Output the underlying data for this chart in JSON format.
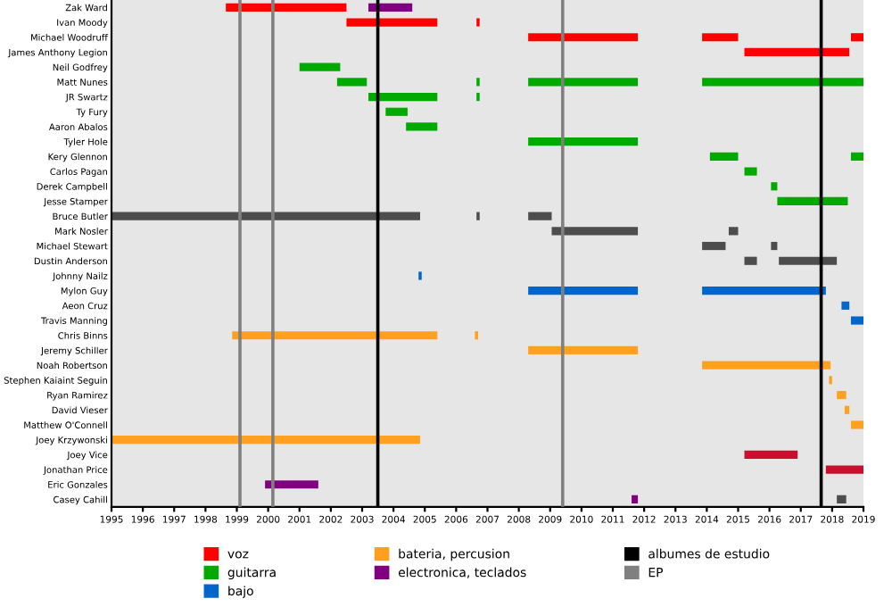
{
  "chart_data": {
    "type": "bar",
    "orientation": "horizontal",
    "categories": [
      "Zak Ward",
      "Ivan Moody",
      "Michael Woodruff",
      "James Anthony Legion",
      "Neil Godfrey",
      "Matt Nunes",
      "JR Swartz",
      "Ty Fury",
      "Aaron Abalos",
      "Tyler Hole",
      "Kery Glennon",
      "Carlos Pagan",
      "Derek Campbell",
      "Jesse Stamper",
      "Bruce Butler",
      "Mark Nosler",
      "Michael Stewart",
      "Dustin Anderson",
      "Johnny Nailz",
      "Mylon Guy",
      "Aeon Cruz",
      "Travis Manning",
      "Chris Binns",
      "Jeremy Schiller",
      "Noah Robertson",
      "Stephen Kaiaint Seguin",
      "Ryan Ramirez",
      "David Vieser",
      "Matthew O'Connell",
      "Joey Krzywonski",
      "Joey Vice",
      "Jonathan Price",
      "Eric Gonzales",
      "Casey Cahill"
    ],
    "series": [
      {
        "name": "voz",
        "color": "#ff0000",
        "base": [
          1998.65,
          2002.5,
          2008.3,
          2015.2,
          null,
          null,
          null,
          null,
          null,
          null,
          null,
          null,
          null,
          null,
          null,
          null,
          null,
          null,
          null,
          null,
          null,
          null,
          null,
          null,
          null,
          null,
          null,
          null,
          null,
          null,
          null,
          null,
          null,
          null
        ],
        "values": [
          3.85,
          2.9,
          3.5,
          3.35,
          null,
          null,
          null,
          null,
          null,
          null,
          null,
          null,
          null,
          null,
          null,
          null,
          null,
          null,
          null,
          null,
          null,
          null,
          null,
          null,
          null,
          null,
          null,
          null,
          null,
          null,
          null,
          null,
          null,
          null
        ]
      },
      {
        "color": "#ff0000",
        "base": [
          null,
          2006.65,
          2013.85,
          null,
          null,
          null,
          null,
          null,
          null,
          null,
          null,
          null,
          null,
          null,
          null,
          null,
          null,
          null,
          null,
          null,
          null,
          null,
          null,
          null,
          null,
          null,
          null,
          null,
          null,
          null,
          null,
          null,
          null,
          null
        ],
        "values": [
          null,
          0.1,
          1.15,
          null,
          null,
          null,
          null,
          null,
          null,
          null,
          null,
          null,
          null,
          null,
          null,
          null,
          null,
          null,
          null,
          null,
          null,
          null,
          null,
          null,
          null,
          null,
          null,
          null,
          null,
          null,
          null,
          null,
          null,
          null
        ]
      },
      {
        "color": "#ff0000",
        "base": [
          null,
          null,
          2018.6,
          null,
          null,
          null,
          null,
          null,
          null,
          null,
          null,
          null,
          null,
          null,
          null,
          null,
          null,
          null,
          null,
          null,
          null,
          null,
          null,
          null,
          null,
          null,
          null,
          null,
          null,
          null,
          null,
          null,
          null,
          null
        ],
        "values": [
          null,
          null,
          0.4,
          null,
          null,
          null,
          null,
          null,
          null,
          null,
          null,
          null,
          null,
          null,
          null,
          null,
          null,
          null,
          null,
          null,
          null,
          null,
          null,
          null,
          null,
          null,
          null,
          null,
          null,
          null,
          null,
          null,
          null,
          null
        ]
      },
      {
        "color": "#4d4d4d",
        "base": [
          null,
          null,
          null,
          null,
          null,
          null,
          null,
          null,
          null,
          null,
          null,
          null,
          null,
          null,
          1995,
          2009.05,
          2013.85,
          2015.2,
          null,
          null,
          null,
          null,
          null,
          null,
          null,
          null,
          null,
          null,
          null,
          null,
          null,
          null,
          null,
          2018.15
        ],
        "values": [
          null,
          null,
          null,
          null,
          null,
          null,
          null,
          null,
          null,
          null,
          null,
          null,
          null,
          null,
          9.85,
          2.75,
          0.75,
          0.4,
          null,
          null,
          null,
          null,
          null,
          null,
          null,
          null,
          null,
          null,
          null,
          null,
          null,
          null,
          null,
          0.3
        ]
      },
      {
        "color": "#4d4d4d",
        "base": [
          null,
          null,
          null,
          null,
          null,
          null,
          null,
          null,
          null,
          null,
          null,
          null,
          null,
          null,
          2006.65,
          2014.7,
          2016.05,
          2016.3,
          null,
          null,
          null,
          null,
          null,
          null,
          null,
          null,
          null,
          null,
          null,
          null,
          null,
          null,
          null,
          null
        ],
        "values": [
          null,
          null,
          null,
          null,
          null,
          null,
          null,
          null,
          null,
          null,
          null,
          null,
          null,
          null,
          0.1,
          0.3,
          0.2,
          1.85,
          null,
          null,
          null,
          null,
          null,
          null,
          null,
          null,
          null,
          null,
          null,
          null,
          null,
          null,
          null,
          null
        ]
      },
      {
        "color": "#4d4d4d",
        "base": [
          null,
          null,
          null,
          null,
          null,
          null,
          null,
          null,
          null,
          null,
          null,
          null,
          null,
          null,
          2008.3,
          null,
          null,
          null,
          null,
          null,
          null,
          null,
          null,
          null,
          null,
          null,
          null,
          null,
          null,
          null,
          null,
          null,
          null,
          null
        ],
        "values": [
          null,
          null,
          null,
          null,
          null,
          null,
          null,
          null,
          null,
          null,
          null,
          null,
          null,
          null,
          0.75,
          null,
          null,
          null,
          null,
          null,
          null,
          null,
          null,
          null,
          null,
          null,
          null,
          null,
          null,
          null,
          null,
          null,
          null,
          null
        ]
      },
      {
        "name": "guitarra",
        "color": "#00aa00",
        "base": [
          null,
          null,
          null,
          null,
          2001.0,
          2002.2,
          2003.2,
          2003.75,
          2004.4,
          2008.3,
          2014.1,
          2015.2,
          2016.05,
          2016.25,
          null,
          null,
          null,
          null,
          null,
          null,
          null,
          null,
          null,
          null,
          null,
          null,
          null,
          null,
          null,
          null,
          null,
          null,
          null,
          null
        ],
        "values": [
          null,
          null,
          null,
          null,
          1.3,
          0.95,
          2.2,
          0.7,
          1.0,
          3.5,
          0.9,
          0.4,
          0.2,
          2.25,
          null,
          null,
          null,
          null,
          null,
          null,
          null,
          null,
          null,
          null,
          null,
          null,
          null,
          null,
          null,
          null,
          null,
          null,
          null,
          null
        ]
      },
      {
        "color": "#00aa00",
        "base": [
          null,
          null,
          null,
          null,
          null,
          null,
          2006.65,
          null,
          null,
          null,
          2018.6,
          null,
          null,
          null,
          null,
          null,
          null,
          null,
          null,
          null,
          null,
          null,
          null,
          null,
          null,
          null,
          null,
          null,
          null,
          null,
          null,
          null,
          null,
          null
        ],
        "values": [
          null,
          null,
          null,
          null,
          null,
          null,
          0.1,
          null,
          null,
          null,
          0.4,
          null,
          null,
          null,
          null,
          null,
          null,
          null,
          null,
          null,
          null,
          null,
          null,
          null,
          null,
          null,
          null,
          null,
          null,
          null,
          null,
          null,
          null,
          null
        ]
      },
      {
        "color": "#00aa00",
        "base": [
          null,
          null,
          null,
          null,
          null,
          2006.65,
          null,
          null,
          null,
          null,
          null,
          null,
          null,
          null,
          null,
          null,
          null,
          null,
          null,
          null,
          null,
          null,
          null,
          null,
          null,
          null,
          null,
          null,
          null,
          null,
          null,
          null,
          null,
          null
        ],
        "values": [
          null,
          null,
          null,
          null,
          null,
          0.1,
          null,
          null,
          null,
          null,
          null,
          null,
          null,
          null,
          null,
          null,
          null,
          null,
          null,
          null,
          null,
          null,
          null,
          null,
          null,
          null,
          null,
          null,
          null,
          null,
          null,
          null,
          null,
          null
        ]
      },
      {
        "color": "#00aa00",
        "base": [
          null,
          null,
          null,
          null,
          null,
          2008.3,
          null,
          null,
          null,
          null,
          null,
          null,
          null,
          null,
          null,
          null,
          null,
          null,
          null,
          null,
          null,
          null,
          null,
          null,
          null,
          null,
          null,
          null,
          null,
          null,
          null,
          null,
          null,
          null
        ],
        "values": [
          null,
          null,
          null,
          null,
          null,
          3.5,
          null,
          null,
          null,
          null,
          null,
          null,
          null,
          null,
          null,
          null,
          null,
          null,
          null,
          null,
          null,
          null,
          null,
          null,
          null,
          null,
          null,
          null,
          null,
          null,
          null,
          null,
          null,
          null
        ]
      },
      {
        "color": "#00aa00",
        "base": [
          null,
          null,
          null,
          null,
          null,
          2013.85,
          null,
          null,
          null,
          null,
          null,
          null,
          null,
          null,
          null,
          null,
          null,
          null,
          null,
          null,
          null,
          null,
          null,
          null,
          null,
          null,
          null,
          null,
          null,
          null,
          null,
          null,
          null,
          null
        ],
        "values": [
          null,
          null,
          null,
          null,
          null,
          5.15,
          null,
          null,
          null,
          null,
          null,
          null,
          null,
          null,
          null,
          null,
          null,
          null,
          null,
          null,
          null,
          null,
          null,
          null,
          null,
          null,
          null,
          null,
          null,
          null,
          null,
          null,
          null,
          null
        ]
      },
      {
        "name": "bajo",
        "color": "#0066cc",
        "base": [
          null,
          null,
          null,
          null,
          null,
          null,
          null,
          null,
          null,
          null,
          null,
          null,
          null,
          null,
          null,
          null,
          null,
          null,
          2004.8,
          2008.3,
          2018.3,
          2018.6,
          null,
          null,
          null,
          null,
          null,
          null,
          null,
          null,
          null,
          null,
          null,
          null
        ],
        "values": [
          null,
          null,
          null,
          null,
          null,
          null,
          null,
          null,
          null,
          null,
          null,
          null,
          null,
          null,
          null,
          null,
          null,
          null,
          0.1,
          3.5,
          0.25,
          0.4,
          null,
          null,
          null,
          null,
          null,
          null,
          null,
          null,
          null,
          null,
          null,
          null
        ]
      },
      {
        "color": "#0066cc",
        "base": [
          null,
          null,
          null,
          null,
          null,
          null,
          null,
          null,
          null,
          null,
          null,
          null,
          null,
          null,
          null,
          null,
          null,
          null,
          null,
          2013.85,
          null,
          null,
          null,
          null,
          null,
          null,
          null,
          null,
          null,
          null,
          null,
          null,
          null,
          null
        ],
        "values": [
          null,
          null,
          null,
          null,
          null,
          null,
          null,
          null,
          null,
          null,
          null,
          null,
          null,
          null,
          null,
          null,
          null,
          null,
          null,
          3.95,
          null,
          null,
          null,
          null,
          null,
          null,
          null,
          null,
          null,
          null,
          null,
          null,
          null,
          null
        ]
      },
      {
        "name": "bateria, percusion",
        "color": "#ffa020",
        "base": [
          null,
          null,
          null,
          null,
          null,
          null,
          null,
          null,
          null,
          null,
          null,
          null,
          null,
          null,
          null,
          null,
          null,
          null,
          null,
          null,
          null,
          null,
          1998.85,
          2008.3,
          2013.85,
          2017.9,
          2018.15,
          2018.4,
          2018.6,
          1995,
          null,
          null,
          null,
          null
        ],
        "values": [
          null,
          null,
          null,
          null,
          null,
          null,
          null,
          null,
          null,
          null,
          null,
          null,
          null,
          null,
          null,
          null,
          null,
          null,
          null,
          null,
          null,
          null,
          6.55,
          3.5,
          4.1,
          0.1,
          0.3,
          0.15,
          0.4,
          9.85,
          null,
          null,
          null,
          null
        ]
      },
      {
        "color": "#ffa020",
        "base": [
          null,
          null,
          null,
          null,
          null,
          null,
          null,
          null,
          null,
          null,
          null,
          null,
          null,
          null,
          null,
          null,
          null,
          null,
          null,
          null,
          null,
          null,
          2006.6,
          null,
          null,
          null,
          null,
          null,
          null,
          null,
          null,
          null,
          null,
          null
        ],
        "values": [
          null,
          null,
          null,
          null,
          null,
          null,
          null,
          null,
          null,
          null,
          null,
          null,
          null,
          null,
          null,
          null,
          null,
          null,
          null,
          null,
          null,
          null,
          0.1,
          null,
          null,
          null,
          null,
          null,
          null,
          null,
          null,
          null,
          null,
          null
        ]
      },
      {
        "name": "electronica, teclados",
        "color": "#800080",
        "base": [
          2003.2,
          null,
          null,
          null,
          null,
          null,
          null,
          null,
          null,
          null,
          null,
          null,
          null,
          null,
          null,
          null,
          null,
          null,
          null,
          null,
          null,
          null,
          null,
          null,
          null,
          null,
          null,
          null,
          null,
          null,
          null,
          null,
          1999.9,
          2011.6
        ],
        "values": [
          1.4,
          null,
          null,
          null,
          null,
          null,
          null,
          null,
          null,
          null,
          null,
          null,
          null,
          null,
          null,
          null,
          null,
          null,
          null,
          null,
          null,
          null,
          null,
          null,
          null,
          null,
          null,
          null,
          null,
          null,
          null,
          null,
          1.7,
          0.2
        ]
      },
      {
        "color": "#c8102e",
        "base": [
          null,
          null,
          null,
          null,
          null,
          null,
          null,
          null,
          null,
          null,
          null,
          null,
          null,
          null,
          null,
          null,
          null,
          null,
          null,
          null,
          null,
          null,
          null,
          null,
          null,
          null,
          null,
          null,
          null,
          null,
          2015.2,
          2017.8,
          null,
          null
        ],
        "values": [
          null,
          null,
          null,
          null,
          null,
          null,
          null,
          null,
          null,
          null,
          null,
          null,
          null,
          null,
          null,
          null,
          null,
          null,
          null,
          null,
          null,
          null,
          null,
          null,
          null,
          null,
          null,
          null,
          null,
          null,
          1.7,
          1.2,
          null,
          null
        ]
      }
    ],
    "ref_lines": [
      {
        "axis": "x",
        "value": 2003.5,
        "label": "albumes de estudio",
        "color": "#000000"
      },
      {
        "axis": "x",
        "value": 2017.65,
        "color": "#000000"
      },
      {
        "axis": "x",
        "value": 1999.1,
        "label": "EP",
        "color": "#808080"
      },
      {
        "axis": "x",
        "value": 2000.15,
        "color": "#808080"
      },
      {
        "axis": "x",
        "value": 2009.4,
        "color": "#808080"
      }
    ],
    "xlim": [
      1995,
      2019
    ],
    "xticks": [
      1995,
      1996,
      1997,
      1998,
      1999,
      2000,
      2001,
      2002,
      2003,
      2004,
      2005,
      2006,
      2007,
      2008,
      2009,
      2010,
      2011,
      2012,
      2013,
      2014,
      2015,
      2016,
      2017,
      2018,
      2019
    ],
    "grid": false,
    "legend": "bottom"
  }
}
